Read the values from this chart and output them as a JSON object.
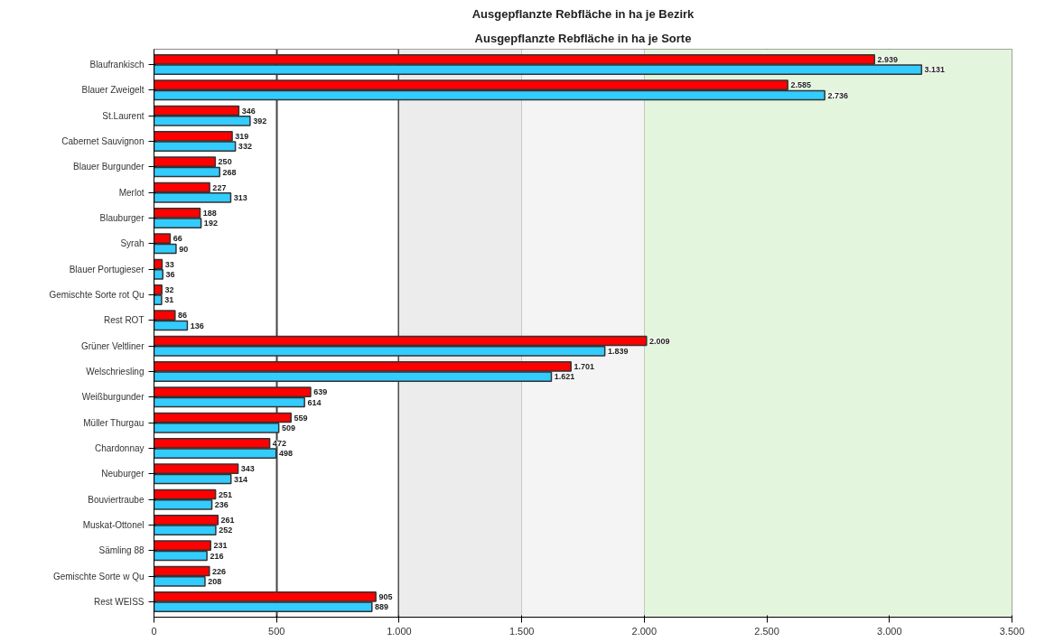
{
  "chart_data": {
    "type": "bar",
    "orientation": "horizontal",
    "title": "Ausgepflanzte Rebfläche in ha je Bezirk",
    "subtitle": "Ausgepflanzte Rebfläche in ha je Sorte",
    "categories": [
      "Blaufrankisch",
      "Blauer Zweigelt",
      "St.Laurent",
      "Cabernet Sauvignon",
      "Blauer Burgunder",
      "Merlot",
      "Blauburger",
      "Syrah",
      "Blauer Portugieser",
      "Gemischte Sorte rot Qu",
      "Rest ROT",
      "Grüner Veltliner",
      "Welschriesling",
      "Weißburgunder",
      "Müller Thurgau",
      "Chardonnay",
      "Neuburger",
      "Bouviertraube",
      "Muskat-Ottonel",
      "Sämling 88",
      "Gemischte Sorte w Qu",
      "Rest WEISS"
    ],
    "series": [
      {
        "color": "#ff0000",
        "values": [
          2939,
          2585,
          346,
          319,
          250,
          227,
          188,
          66,
          33,
          32,
          86,
          2009,
          1701,
          639,
          559,
          472,
          343,
          251,
          261,
          231,
          226,
          905
        ],
        "value_labels": [
          "2.939",
          "2.585",
          "346",
          "319",
          "250",
          "227",
          "188",
          "66",
          "33",
          "32",
          "86",
          "2.009",
          "1.701",
          "639",
          "559",
          "472",
          "343",
          "251",
          "261",
          "231",
          "226",
          "905"
        ]
      },
      {
        "color": "#33ccff",
        "values": [
          3131,
          2736,
          392,
          332,
          268,
          313,
          192,
          90,
          36,
          31,
          136,
          1839,
          1621,
          614,
          509,
          498,
          314,
          236,
          252,
          216,
          208,
          889
        ],
        "value_labels": [
          "3.131",
          "2.736",
          "392",
          "332",
          "268",
          "313",
          "192",
          "90",
          "36",
          "31",
          "136",
          "1.839",
          "1.621",
          "614",
          "509",
          "498",
          "314",
          "236",
          "252",
          "216",
          "208",
          "889"
        ]
      }
    ],
    "xlim": [
      0,
      3500
    ],
    "xticks": [
      0,
      500,
      {
        "value": 1000,
        "label": "1.000"
      },
      {
        "value": 1500,
        "label": "1.500"
      },
      {
        "value": 2000,
        "label": "2.000"
      },
      {
        "value": 2500,
        "label": "2.500"
      },
      {
        "value": 3000,
        "label": "3.000"
      },
      {
        "value": 3500,
        "label": "3.500"
      }
    ],
    "bands": [
      {
        "axis": "x",
        "from": 1000,
        "to": 1500,
        "color": "#ececec"
      },
      {
        "axis": "x",
        "from": 1500,
        "to": 2000,
        "color": "#f4f4f4"
      },
      {
        "axis": "x",
        "from": 2000,
        "to": 3500,
        "color": "#e3f5dc"
      }
    ],
    "grid": "x"
  }
}
